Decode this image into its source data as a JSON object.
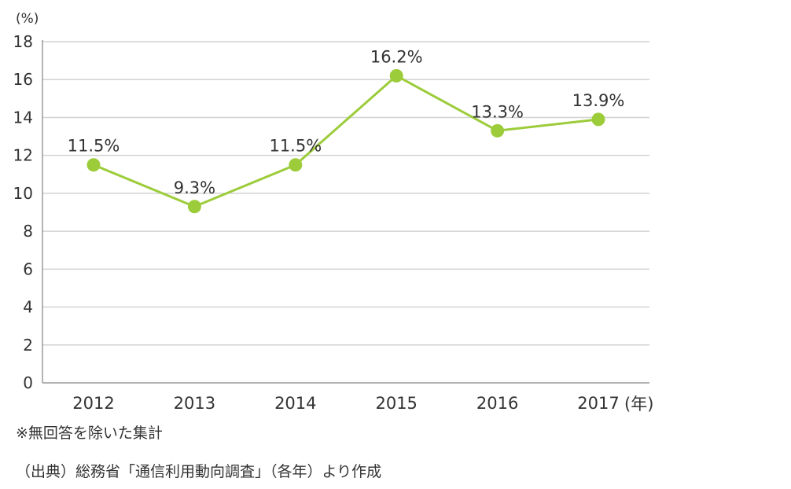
{
  "chart_data": {
    "type": "line",
    "categories": [
      "2012",
      "2013",
      "2014",
      "2015",
      "2016",
      "2017"
    ],
    "series": [
      {
        "values": [
          11.5,
          9.3,
          11.5,
          16.2,
          13.3,
          13.9
        ],
        "labels": [
          "11.5%",
          "9.3%",
          "11.5%",
          "16.2%",
          "13.3%",
          "13.9%"
        ],
        "color": "#9ccc3a"
      }
    ],
    "ylim": [
      0,
      18
    ],
    "yticks": [
      0,
      2,
      4,
      6,
      8,
      10,
      12,
      14,
      16,
      18
    ],
    "y_unit": "(%)",
    "x_unit": "(年)",
    "grid": true,
    "grid_color": "#d2d2d2",
    "axis_color": "#9a9a9a"
  },
  "notes": {
    "exclusion": "※無回答を除いた集計",
    "source": "（出典）総務省「通信利用動向調査」（各年）より作成"
  }
}
